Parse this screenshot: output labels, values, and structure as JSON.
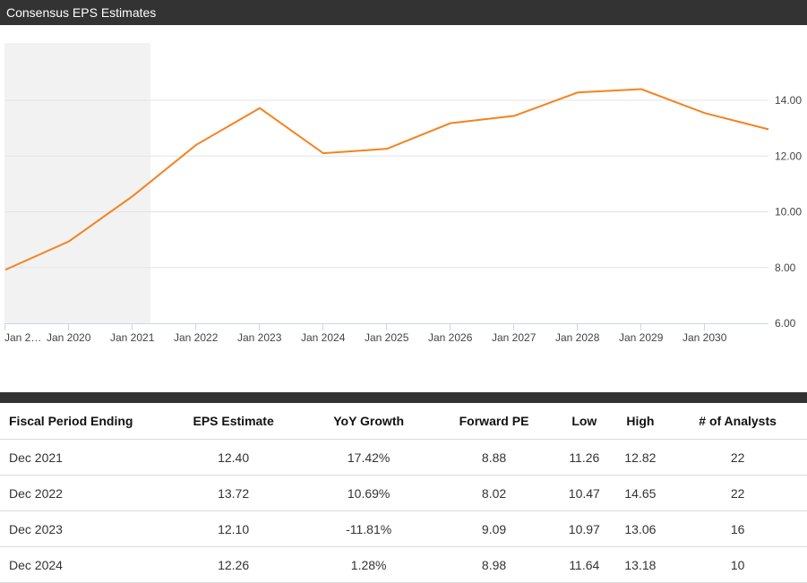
{
  "header": {
    "title": "Consensus EPS Estimates"
  },
  "colors": {
    "line": "#f58220",
    "shade": "#f2f2f2",
    "bar": "#333333",
    "grid": "#e3e3e3"
  },
  "chart_data": {
    "type": "line",
    "title": "Consensus EPS Estimates",
    "x_tick_labels": [
      "Jan 2…",
      "Jan 2020",
      "Jan 2021",
      "Jan 2022",
      "Jan 2023",
      "Jan 2024",
      "Jan 2025",
      "Jan 2026",
      "Jan 2027",
      "Jan 2028",
      "Jan 2029",
      "Jan 2030"
    ],
    "y_tick_labels": [
      "6.00",
      "8.00",
      "10.00",
      "12.00",
      "14.00"
    ],
    "ylim": [
      6,
      14
    ],
    "grid": true,
    "shaded_region": {
      "from": "Jan 2019",
      "to": "Jan 2021 (historical)"
    },
    "series": [
      {
        "x": [
          "Dec 2018",
          "Dec 2019",
          "Dec 2020",
          "Dec 2021",
          "Dec 2022",
          "Dec 2023",
          "Dec 2024",
          "Dec 2025",
          "Dec 2026",
          "Dec 2027",
          "Dec 2028",
          "Dec 2029",
          "Dec 2030"
        ],
        "values": [
          7.92,
          8.94,
          10.56,
          12.4,
          13.72,
          12.1,
          12.26,
          13.18,
          13.44,
          14.28,
          14.4,
          13.54,
          12.96
        ]
      }
    ]
  },
  "table": {
    "headers": [
      "Fiscal Period Ending",
      "EPS Estimate",
      "YoY Growth",
      "Forward PE",
      "Low",
      "High",
      "# of Analysts"
    ],
    "rows": [
      [
        "Dec 2021",
        "12.40",
        "17.42%",
        "8.88",
        "11.26",
        "12.82",
        "22"
      ],
      [
        "Dec 2022",
        "13.72",
        "10.69%",
        "8.02",
        "10.47",
        "14.65",
        "22"
      ],
      [
        "Dec 2023",
        "12.10",
        "-11.81%",
        "9.09",
        "10.97",
        "13.06",
        "16"
      ],
      [
        "Dec 2024",
        "12.26",
        "1.28%",
        "8.98",
        "11.64",
        "13.18",
        "10"
      ]
    ]
  }
}
